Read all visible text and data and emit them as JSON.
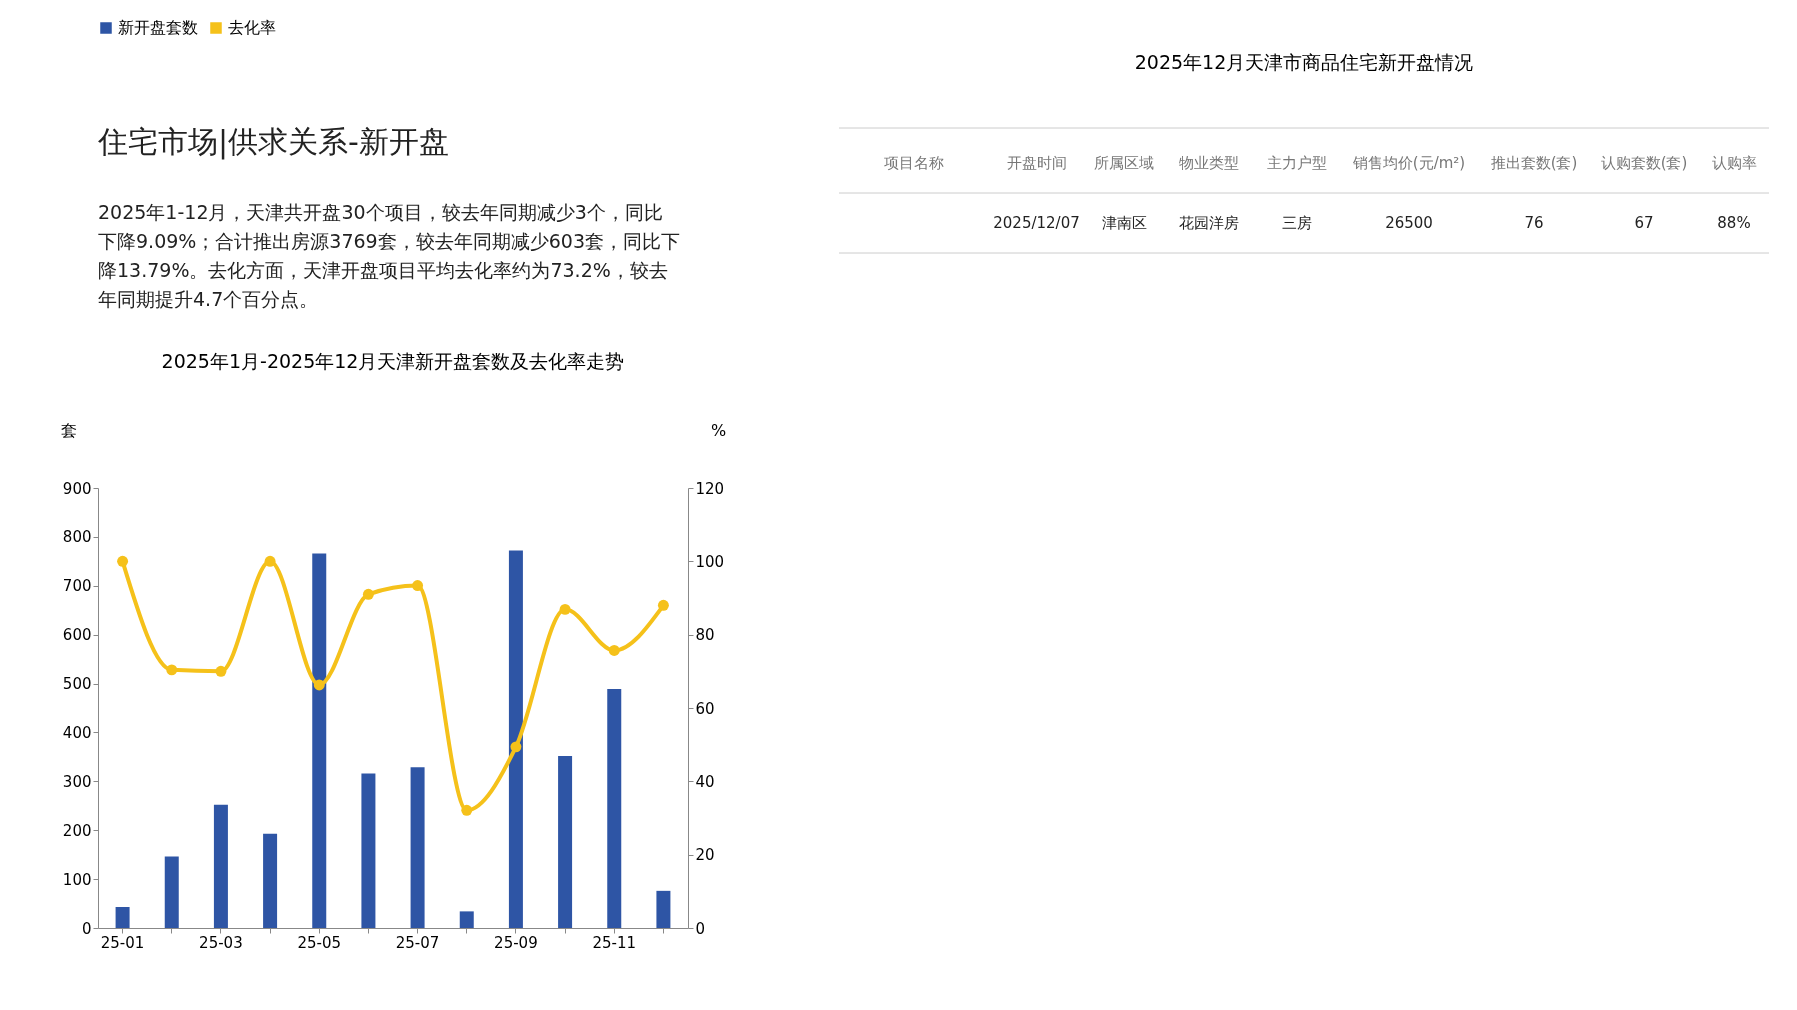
{
  "chart_data": [
    {
      "type": "other",
      "title": "住宅市场|供求关系-新开盘",
      "subtitle": [
        "2025年1-12月，天津共开盘30个项目，较去年同期减少3个，同比",
        "下降9.09%；合计推出房源3769套，较去年同期减少603套，同比下",
        "降13.79%。去化方面，天津开盘项目平均去化率约为73.2%，较去",
        "年同期提升4.7个百分点。"
      ]
    },
    {
      "type": "bar",
      "title": "2025年1月-2025年12月天津新开盘套数及去化率走势",
      "ylabel": "套",
      "y2label": "%",
      "categories": [
        "25-01",
        null,
        "25-03",
        null,
        "25-05",
        null,
        "25-07",
        null,
        "25-09",
        null,
        "25-11",
        null
      ],
      "series": [
        {
          "name": "新开盘套数",
          "type": "bar",
          "color": "#2e55a5",
          "values": [
            43,
            146,
            252,
            193,
            766,
            316,
            329,
            34,
            772,
            352,
            489,
            76
          ]
        },
        {
          "name": "去化率",
          "type": "line",
          "axis": "y2",
          "color": "#f5c11a",
          "marker": "circle",
          "values": [
            100,
            70.4,
            70,
            100,
            66.3,
            91,
            93.4,
            32.1,
            49.4,
            86.9,
            75.7,
            88
          ]
        }
      ],
      "ylim": [
        0,
        900
      ],
      "yticks": [
        0,
        100,
        200,
        300,
        400,
        500,
        600,
        700,
        800,
        900
      ],
      "y2lim": [
        0,
        120
      ],
      "y2ticks": [
        0,
        20,
        40,
        60,
        80,
        100,
        120
      ],
      "legend": "top",
      "grid": false
    },
    {
      "type": "other",
      "title": "2025年12月天津市商品住宅新开盘情况",
      "categories": [
        "项目名称",
        "开盘时间",
        "所属区域",
        "物业类型",
        "主力户型",
        "销售均价(元/m²)",
        "推出套数(套)",
        "认购套数(套)",
        "认购率"
      ],
      "cell_labels": [
        [
          null,
          "2025/12/07",
          "津南区",
          "花园洋房",
          "三房",
          "26500",
          "76",
          "67",
          "88%"
        ]
      ]
    }
  ]
}
